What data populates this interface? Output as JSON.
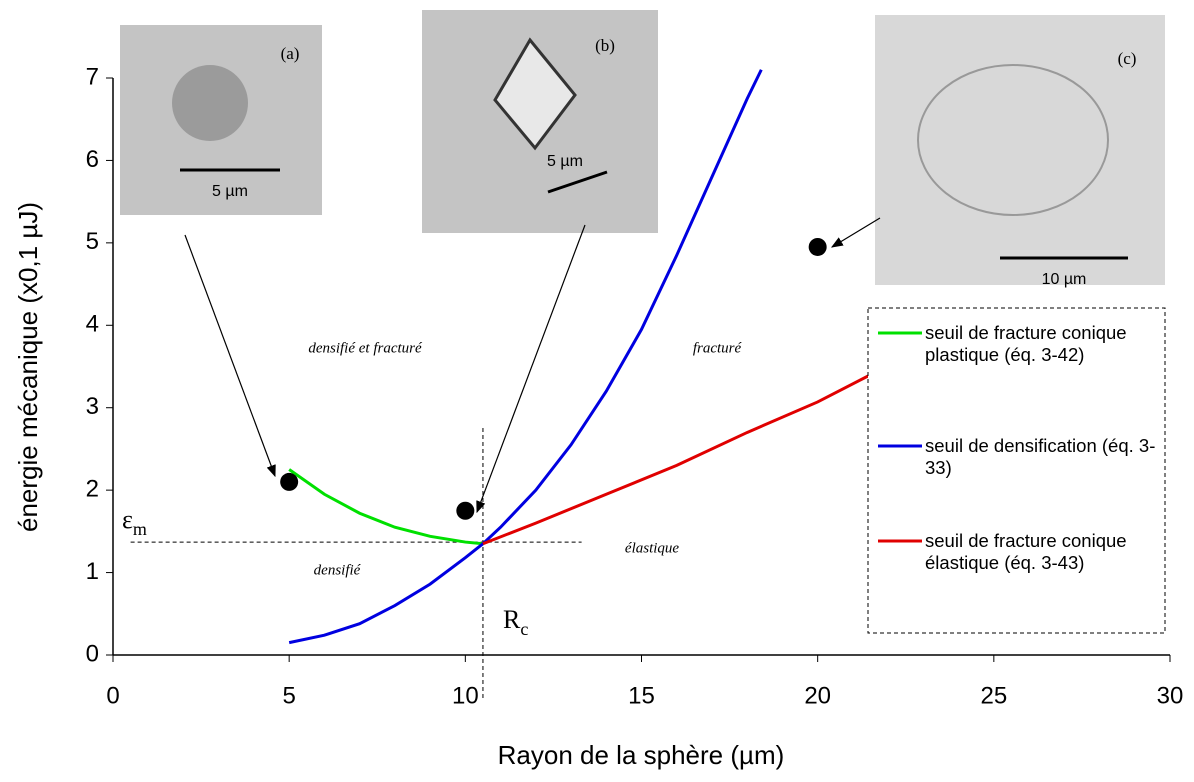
{
  "chart_data": {
    "type": "line",
    "x_label": "Rayon de la sphère (µm)",
    "y_label": "énergie mécanique (x0,1 µJ)",
    "xlim": [
      0,
      30
    ],
    "xticks": [
      0,
      5,
      10,
      15,
      20,
      25,
      30
    ],
    "ylim": [
      0,
      7
    ],
    "yticks": [
      0,
      1,
      2,
      3,
      4,
      5,
      6,
      7
    ],
    "series": [
      {
        "name": "seuil de fracture conique plastique (éq. 3-42)",
        "color": "#00e000",
        "x": [
          5,
          6,
          7,
          8,
          9,
          10,
          10.5
        ],
        "values": [
          2.25,
          1.95,
          1.72,
          1.55,
          1.44,
          1.37,
          1.35
        ]
      },
      {
        "name": "seuil de densification (éq. 3-33)",
        "color": "#0000e0",
        "x": [
          5,
          6,
          7,
          8,
          9,
          10,
          10.5,
          11,
          12,
          13,
          14,
          15,
          16,
          17,
          18,
          18.4
        ],
        "values": [
          0.15,
          0.24,
          0.38,
          0.6,
          0.86,
          1.18,
          1.35,
          1.55,
          2.0,
          2.55,
          3.2,
          3.95,
          4.85,
          5.8,
          6.75,
          7.1
        ]
      },
      {
        "name": "seuil de fracture conique élastique (éq. 3-43)",
        "color": "#e00000",
        "x": [
          10.5,
          12,
          14,
          16,
          18,
          20,
          21.5
        ],
        "values": [
          1.35,
          1.6,
          1.95,
          2.3,
          2.7,
          3.07,
          3.4
        ]
      }
    ],
    "points": {
      "x": [
        5,
        10,
        20
      ],
      "values": [
        2.1,
        1.75,
        4.95
      ],
      "color": "#000000"
    },
    "reference_lines": {
      "horizontal": 1.37,
      "vertical": 10.5
    },
    "annotations": [
      "densifié et fracturé",
      "fracturé",
      "densifié",
      "élastique"
    ],
    "symbols": [
      {
        "text": "ε",
        "sub": "m"
      },
      {
        "text": "R",
        "sub": "c"
      }
    ],
    "photos": [
      {
        "label": "(a)",
        "scale": "5 µm"
      },
      {
        "label": "(b)",
        "scale": "5 µm"
      },
      {
        "label": "(c)",
        "scale": "10 µm"
      }
    ]
  }
}
